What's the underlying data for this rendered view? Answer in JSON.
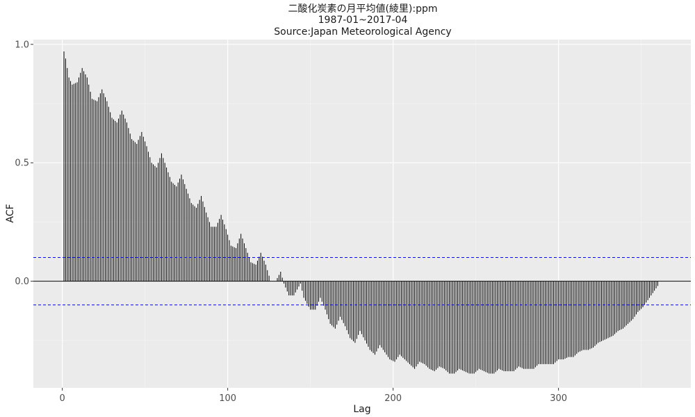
{
  "chart_data": {
    "type": "bar",
    "title_lines": [
      "二酸化炭素の月平均値(綾里):ppm",
      "1987-01~2017-04",
      "Source:Japan Meteorological Agency"
    ],
    "xlabel": "Lag",
    "ylabel": "ACF",
    "xlim": [
      -17.5,
      380
    ],
    "ylim": [
      -0.45,
      1.02
    ],
    "x_ticks": [
      0,
      100,
      200,
      300
    ],
    "x_tick_labels": [
      "0",
      "100",
      "200",
      "300"
    ],
    "y_ticks": [
      0.0,
      0.5,
      1.0
    ],
    "y_tick_labels": [
      "0.0",
      "0.5",
      "1.0"
    ],
    "confidence_limit": 0.1,
    "grid": true,
    "lag_start": 1,
    "lag_end": 360,
    "acf_note": "ACF values estimated from figure; one bar per lag 1..360",
    "acf_anchors": [
      [
        1,
        0.97
      ],
      [
        2,
        0.94
      ],
      [
        4,
        0.86
      ],
      [
        6,
        0.83
      ],
      [
        9,
        0.84
      ],
      [
        12,
        0.9
      ],
      [
        15,
        0.86
      ],
      [
        18,
        0.77
      ],
      [
        21,
        0.76
      ],
      [
        24,
        0.81
      ],
      [
        27,
        0.76
      ],
      [
        30,
        0.69
      ],
      [
        33,
        0.67
      ],
      [
        36,
        0.72
      ],
      [
        39,
        0.67
      ],
      [
        42,
        0.6
      ],
      [
        45,
        0.58
      ],
      [
        48,
        0.63
      ],
      [
        51,
        0.57
      ],
      [
        54,
        0.5
      ],
      [
        57,
        0.48
      ],
      [
        60,
        0.54
      ],
      [
        63,
        0.48
      ],
      [
        66,
        0.42
      ],
      [
        69,
        0.4
      ],
      [
        72,
        0.45
      ],
      [
        75,
        0.39
      ],
      [
        78,
        0.33
      ],
      [
        81,
        0.31
      ],
      [
        84,
        0.36
      ],
      [
        87,
        0.29
      ],
      [
        90,
        0.23
      ],
      [
        93,
        0.23
      ],
      [
        96,
        0.28
      ],
      [
        99,
        0.22
      ],
      [
        102,
        0.15
      ],
      [
        105,
        0.14
      ],
      [
        108,
        0.2
      ],
      [
        111,
        0.14
      ],
      [
        114,
        0.08
      ],
      [
        117,
        0.07
      ],
      [
        120,
        0.12
      ],
      [
        123,
        0.07
      ],
      [
        126,
        0.0
      ],
      [
        129,
        0.0
      ],
      [
        132,
        0.04
      ],
      [
        134,
        -0.01
      ],
      [
        137,
        -0.06
      ],
      [
        140,
        -0.06
      ],
      [
        144,
        -0.01
      ],
      [
        146,
        -0.07
      ],
      [
        150,
        -0.12
      ],
      [
        153,
        -0.12
      ],
      [
        156,
        -0.07
      ],
      [
        159,
        -0.12
      ],
      [
        162,
        -0.18
      ],
      [
        165,
        -0.2
      ],
      [
        168,
        -0.15
      ],
      [
        171,
        -0.19
      ],
      [
        174,
        -0.24
      ],
      [
        177,
        -0.26
      ],
      [
        180,
        -0.21
      ],
      [
        183,
        -0.25
      ],
      [
        186,
        -0.29
      ],
      [
        189,
        -0.31
      ],
      [
        192,
        -0.27
      ],
      [
        195,
        -0.3
      ],
      [
        198,
        -0.33
      ],
      [
        201,
        -0.34
      ],
      [
        204,
        -0.31
      ],
      [
        207,
        -0.33
      ],
      [
        210,
        -0.35
      ],
      [
        213,
        -0.37
      ],
      [
        216,
        -0.34
      ],
      [
        219,
        -0.35
      ],
      [
        222,
        -0.37
      ],
      [
        225,
        -0.38
      ],
      [
        228,
        -0.36
      ],
      [
        231,
        -0.37
      ],
      [
        234,
        -0.39
      ],
      [
        237,
        -0.39
      ],
      [
        240,
        -0.37
      ],
      [
        243,
        -0.38
      ],
      [
        246,
        -0.39
      ],
      [
        249,
        -0.39
      ],
      [
        252,
        -0.37
      ],
      [
        255,
        -0.38
      ],
      [
        258,
        -0.39
      ],
      [
        261,
        -0.39
      ],
      [
        264,
        -0.37
      ],
      [
        267,
        -0.38
      ],
      [
        270,
        -0.38
      ],
      [
        273,
        -0.38
      ],
      [
        276,
        -0.36
      ],
      [
        279,
        -0.37
      ],
      [
        282,
        -0.37
      ],
      [
        285,
        -0.37
      ],
      [
        288,
        -0.35
      ],
      [
        291,
        -0.35
      ],
      [
        294,
        -0.35
      ],
      [
        297,
        -0.35
      ],
      [
        300,
        -0.33
      ],
      [
        303,
        -0.33
      ],
      [
        306,
        -0.32
      ],
      [
        309,
        -0.32
      ],
      [
        312,
        -0.3
      ],
      [
        315,
        -0.29
      ],
      [
        318,
        -0.29
      ],
      [
        321,
        -0.28
      ],
      [
        324,
        -0.26
      ],
      [
        327,
        -0.25
      ],
      [
        330,
        -0.24
      ],
      [
        333,
        -0.23
      ],
      [
        336,
        -0.21
      ],
      [
        339,
        -0.2
      ],
      [
        342,
        -0.18
      ],
      [
        345,
        -0.16
      ],
      [
        348,
        -0.13
      ],
      [
        351,
        -0.11
      ],
      [
        354,
        -0.08
      ],
      [
        357,
        -0.05
      ],
      [
        360,
        -0.02
      ]
    ]
  }
}
